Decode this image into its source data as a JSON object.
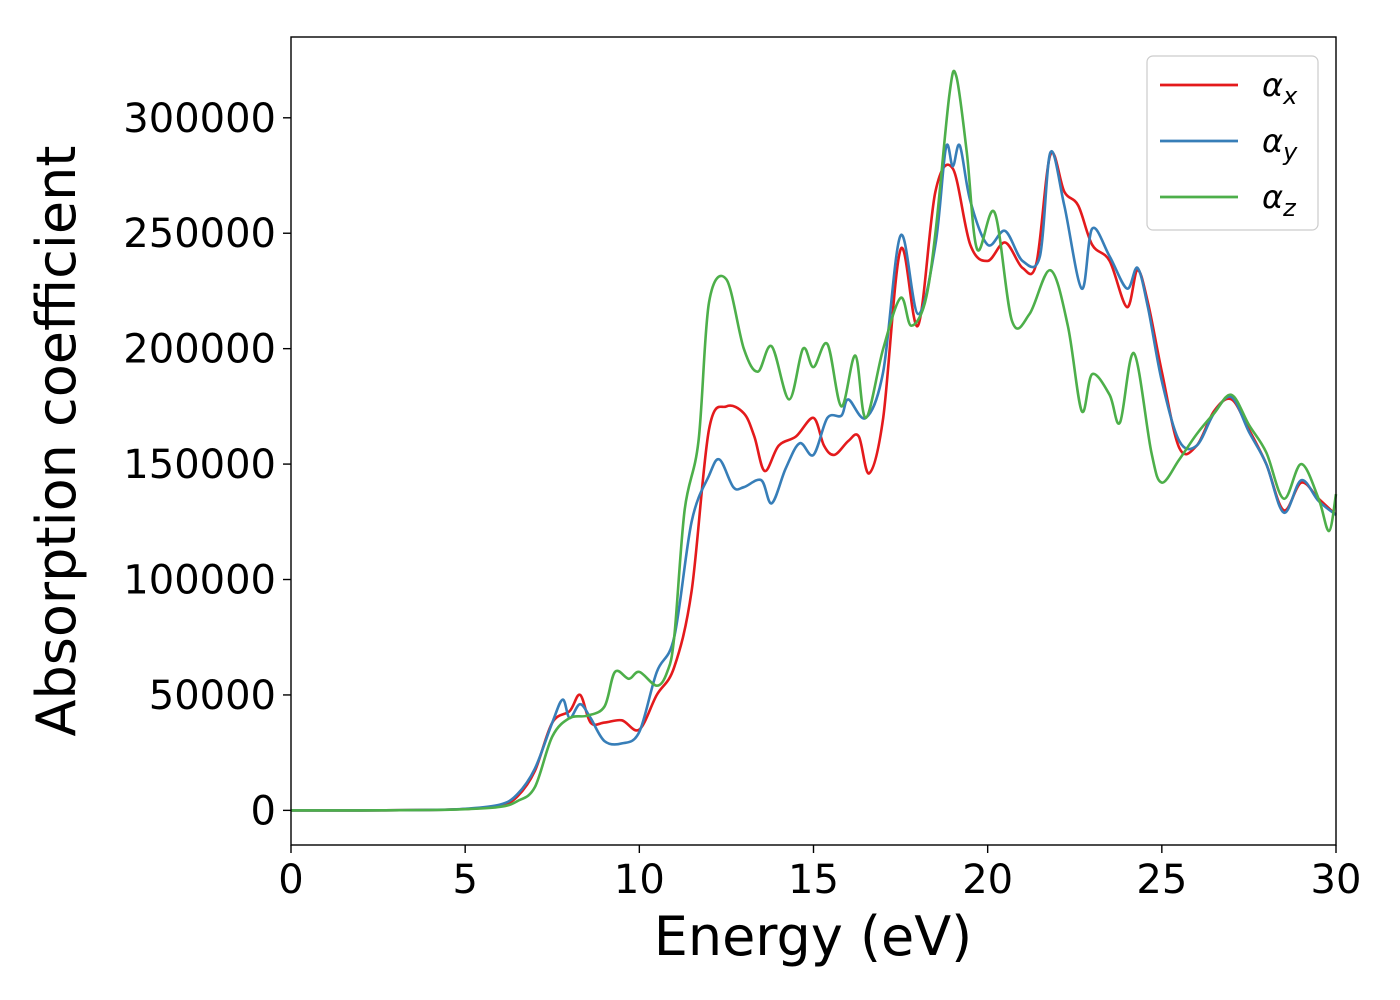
{
  "chart_data": {
    "type": "line",
    "title": "",
    "xlabel": "Energy (eV)",
    "ylabel": "Absorption coefficient",
    "xlim": [
      0,
      30
    ],
    "ylim": [
      -15000,
      335000
    ],
    "xticks": [
      0,
      5,
      10,
      15,
      20,
      25,
      30
    ],
    "yticks": [
      0,
      50000,
      100000,
      150000,
      200000,
      250000,
      300000
    ],
    "grid": false,
    "legend_position": "top-right",
    "series": [
      {
        "name": "α_x",
        "label_base": "α",
        "label_sub": "x",
        "color": "#e41a1c",
        "points": [
          [
            0,
            0
          ],
          [
            2,
            0
          ],
          [
            4,
            200
          ],
          [
            5,
            600
          ],
          [
            6,
            2000
          ],
          [
            6.5,
            6000
          ],
          [
            7,
            17000
          ],
          [
            7.5,
            38000
          ],
          [
            8,
            43000
          ],
          [
            8.3,
            50000
          ],
          [
            8.6,
            38000
          ],
          [
            9,
            38000
          ],
          [
            9.5,
            39000
          ],
          [
            10,
            35000
          ],
          [
            10.5,
            50000
          ],
          [
            11,
            62000
          ],
          [
            11.5,
            95000
          ],
          [
            12,
            165000
          ],
          [
            12.5,
            175000
          ],
          [
            13,
            172000
          ],
          [
            13.3,
            162000
          ],
          [
            13.6,
            147000
          ],
          [
            14,
            158000
          ],
          [
            14.5,
            162000
          ],
          [
            15,
            170000
          ],
          [
            15.3,
            158000
          ],
          [
            15.6,
            154000
          ],
          [
            16,
            160000
          ],
          [
            16.3,
            162000
          ],
          [
            16.6,
            146000
          ],
          [
            17,
            170000
          ],
          [
            17.5,
            243000
          ],
          [
            18,
            210000
          ],
          [
            18.5,
            268000
          ],
          [
            19,
            278000
          ],
          [
            19.5,
            245000
          ],
          [
            20,
            238000
          ],
          [
            20.5,
            246000
          ],
          [
            21,
            235000
          ],
          [
            21.4,
            237000
          ],
          [
            21.8,
            284000
          ],
          [
            22.2,
            268000
          ],
          [
            22.6,
            262000
          ],
          [
            23,
            245000
          ],
          [
            23.5,
            238000
          ],
          [
            24,
            218000
          ],
          [
            24.3,
            234000
          ],
          [
            24.6,
            220000
          ],
          [
            25,
            190000
          ],
          [
            25.5,
            157000
          ],
          [
            26,
            158000
          ],
          [
            26.5,
            173000
          ],
          [
            27,
            178000
          ],
          [
            27.5,
            165000
          ],
          [
            28,
            150000
          ],
          [
            28.5,
            130000
          ],
          [
            29,
            142000
          ],
          [
            29.5,
            135000
          ],
          [
            30,
            128000
          ]
        ]
      },
      {
        "name": "α_y",
        "label_base": "α",
        "label_sub": "y",
        "color": "#377eb8",
        "points": [
          [
            0,
            0
          ],
          [
            2,
            0
          ],
          [
            4,
            200
          ],
          [
            5,
            700
          ],
          [
            6,
            2500
          ],
          [
            6.5,
            7000
          ],
          [
            7,
            18000
          ],
          [
            7.5,
            38000
          ],
          [
            7.8,
            48000
          ],
          [
            8,
            40000
          ],
          [
            8.3,
            46000
          ],
          [
            8.6,
            40000
          ],
          [
            9,
            30000
          ],
          [
            9.5,
            29000
          ],
          [
            10,
            34000
          ],
          [
            10.5,
            60000
          ],
          [
            11,
            75000
          ],
          [
            11.5,
            125000
          ],
          [
            12,
            145000
          ],
          [
            12.3,
            152000
          ],
          [
            12.7,
            140000
          ],
          [
            13,
            140000
          ],
          [
            13.5,
            143000
          ],
          [
            13.8,
            133000
          ],
          [
            14.2,
            148000
          ],
          [
            14.6,
            159000
          ],
          [
            15,
            154000
          ],
          [
            15.4,
            170000
          ],
          [
            15.8,
            171000
          ],
          [
            16,
            178000
          ],
          [
            16.5,
            170000
          ],
          [
            17,
            190000
          ],
          [
            17.5,
            249000
          ],
          [
            18,
            215000
          ],
          [
            18.5,
            245000
          ],
          [
            18.8,
            287000
          ],
          [
            19,
            279000
          ],
          [
            19.2,
            288000
          ],
          [
            19.5,
            264000
          ],
          [
            20,
            245000
          ],
          [
            20.5,
            251000
          ],
          [
            21,
            238000
          ],
          [
            21.5,
            240000
          ],
          [
            21.8,
            285000
          ],
          [
            22.2,
            262000
          ],
          [
            22.7,
            226000
          ],
          [
            23,
            252000
          ],
          [
            23.5,
            240000
          ],
          [
            24,
            226000
          ],
          [
            24.3,
            235000
          ],
          [
            24.6,
            218000
          ],
          [
            25,
            186000
          ],
          [
            25.5,
            160000
          ],
          [
            26,
            158000
          ],
          [
            26.5,
            172000
          ],
          [
            27,
            179000
          ],
          [
            27.5,
            164000
          ],
          [
            28,
            150000
          ],
          [
            28.5,
            129000
          ],
          [
            29,
            143000
          ],
          [
            29.5,
            134000
          ],
          [
            30,
            128000
          ]
        ]
      },
      {
        "name": "α_z",
        "label_base": "α",
        "label_sub": "z",
        "color": "#4daf4a",
        "points": [
          [
            0,
            0
          ],
          [
            2,
            0
          ],
          [
            4,
            150
          ],
          [
            5,
            500
          ],
          [
            6,
            1500
          ],
          [
            6.5,
            4000
          ],
          [
            7,
            10000
          ],
          [
            7.5,
            32000
          ],
          [
            8,
            40000
          ],
          [
            8.5,
            41000
          ],
          [
            9,
            45000
          ],
          [
            9.3,
            60000
          ],
          [
            9.7,
            57000
          ],
          [
            10,
            60000
          ],
          [
            10.5,
            54000
          ],
          [
            10.8,
            60000
          ],
          [
            11,
            75000
          ],
          [
            11.3,
            130000
          ],
          [
            11.7,
            160000
          ],
          [
            12,
            220000
          ],
          [
            12.5,
            230000
          ],
          [
            13,
            200000
          ],
          [
            13.4,
            190000
          ],
          [
            13.8,
            201000
          ],
          [
            14.3,
            178000
          ],
          [
            14.7,
            200000
          ],
          [
            15,
            192000
          ],
          [
            15.4,
            202000
          ],
          [
            15.8,
            175000
          ],
          [
            16.2,
            197000
          ],
          [
            16.5,
            170000
          ],
          [
            17,
            200000
          ],
          [
            17.5,
            222000
          ],
          [
            17.8,
            210000
          ],
          [
            18.2,
            220000
          ],
          [
            18.5,
            250000
          ],
          [
            18.9,
            310000
          ],
          [
            19.1,
            318000
          ],
          [
            19.4,
            285000
          ],
          [
            19.7,
            243000
          ],
          [
            20.2,
            259000
          ],
          [
            20.7,
            212000
          ],
          [
            21.2,
            215000
          ],
          [
            21.8,
            234000
          ],
          [
            22.3,
            210000
          ],
          [
            22.7,
            173000
          ],
          [
            23,
            189000
          ],
          [
            23.5,
            180000
          ],
          [
            23.8,
            168000
          ],
          [
            24.2,
            198000
          ],
          [
            24.7,
            155000
          ],
          [
            25,
            142000
          ],
          [
            25.5,
            152000
          ],
          [
            26,
            163000
          ],
          [
            26.5,
            172000
          ],
          [
            27,
            180000
          ],
          [
            27.5,
            167000
          ],
          [
            28,
            155000
          ],
          [
            28.5,
            135000
          ],
          [
            29,
            150000
          ],
          [
            29.5,
            135000
          ],
          [
            29.8,
            121000
          ],
          [
            30,
            137000
          ]
        ]
      }
    ]
  }
}
